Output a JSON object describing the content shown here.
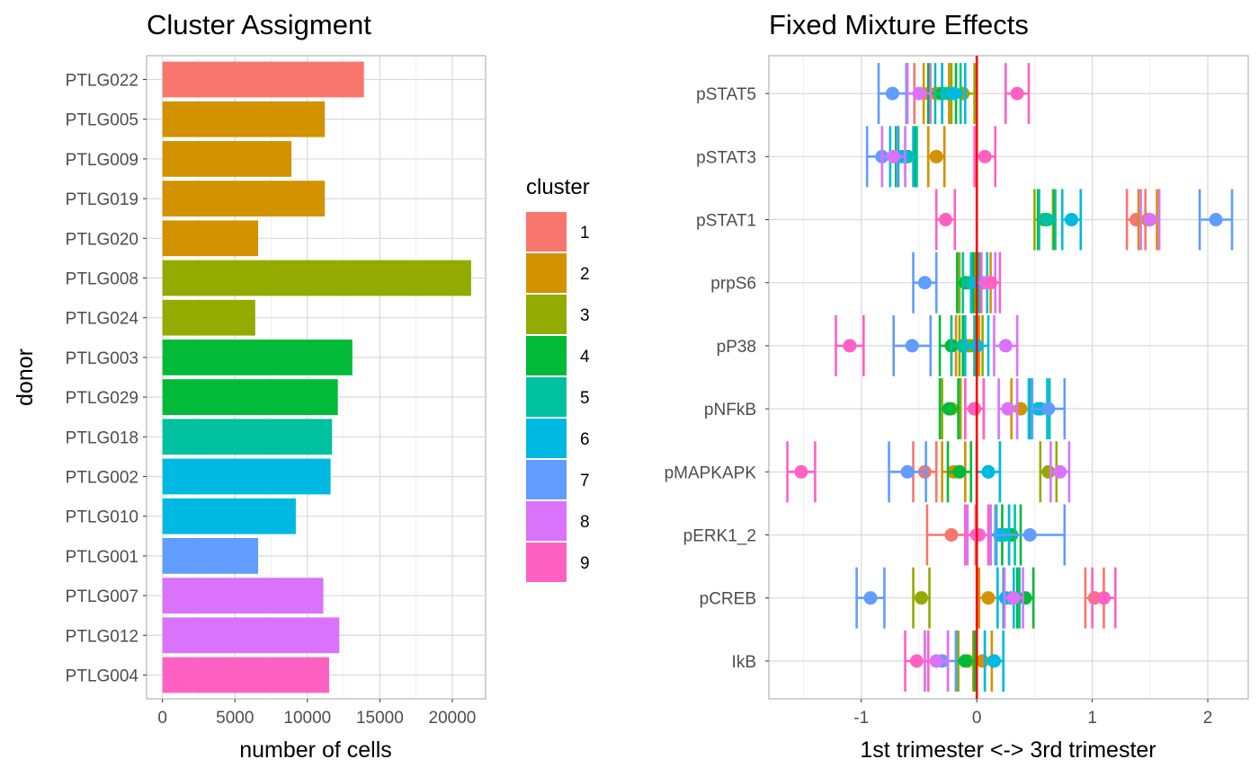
{
  "colors": {
    "1": "#F8766D",
    "2": "#D39200",
    "3": "#93AA00",
    "4": "#00BA38",
    "5": "#00C19F",
    "6": "#00B9E3",
    "7": "#619CFF",
    "8": "#DB72FB",
    "9": "#FF61C3",
    "zero_line": "#FF0000",
    "grid": "#d9d9d9",
    "panel_border": "#b3b3b3"
  },
  "chart_data": [
    {
      "type": "bar",
      "orientation": "horizontal",
      "title": "Cluster Assigment",
      "xlabel": "number of cells",
      "ylabel": "donor",
      "xlim": [
        -1100,
        22300
      ],
      "xticks": [
        0,
        5000,
        10000,
        15000,
        20000
      ],
      "grid": true,
      "legend": {
        "title": "cluster",
        "placement": "right",
        "entries": [
          "1",
          "2",
          "3",
          "4",
          "5",
          "6",
          "7",
          "8",
          "9"
        ]
      },
      "bars": [
        {
          "donor": "PTLG022",
          "cluster": "1",
          "value": 13900
        },
        {
          "donor": "PTLG005",
          "cluster": "2",
          "value": 11200
        },
        {
          "donor": "PTLG009",
          "cluster": "2",
          "value": 8900
        },
        {
          "donor": "PTLG019",
          "cluster": "2",
          "value": 11200
        },
        {
          "donor": "PTLG020",
          "cluster": "2",
          "value": 6600
        },
        {
          "donor": "PTLG008",
          "cluster": "3",
          "value": 21300
        },
        {
          "donor": "PTLG024",
          "cluster": "3",
          "value": 6400
        },
        {
          "donor": "PTLG003",
          "cluster": "4",
          "value": 13100
        },
        {
          "donor": "PTLG029",
          "cluster": "4",
          "value": 12100
        },
        {
          "donor": "PTLG018",
          "cluster": "5",
          "value": 11700
        },
        {
          "donor": "PTLG002",
          "cluster": "6",
          "value": 11600
        },
        {
          "donor": "PTLG010",
          "cluster": "6",
          "value": 9200
        },
        {
          "donor": "PTLG001",
          "cluster": "7",
          "value": 6600
        },
        {
          "donor": "PTLG007",
          "cluster": "8",
          "value": 11100
        },
        {
          "donor": "PTLG012",
          "cluster": "8",
          "value": 12200
        },
        {
          "donor": "PTLG004",
          "cluster": "9",
          "value": 11500
        }
      ]
    },
    {
      "type": "scatter",
      "subtype": "point-range (estimate with confidence interval)",
      "title": "Fixed Mixture Effects",
      "xlabel": "1st trimester <-> 3rd trimester",
      "ylabel": "",
      "xlim": [
        -1.8,
        2.35
      ],
      "xticks": [
        -1,
        0,
        1,
        2
      ],
      "xtick_labels": [
        "-1",
        "0",
        "1",
        "2"
      ],
      "reference_line": {
        "x": 0,
        "color": "#FF0000"
      },
      "grid": true,
      "markers": [
        "pSTAT5",
        "pSTAT3",
        "pSTAT1",
        "prpS6",
        "pP38",
        "pNFkB",
        "pMAPKAPK",
        "pERK1_2",
        "pCREB",
        "IkB"
      ],
      "points": [
        {
          "marker": "pSTAT5",
          "cluster": "1",
          "est": -0.42,
          "lo": -0.54,
          "hi": -0.3
        },
        {
          "marker": "pSTAT5",
          "cluster": "2",
          "est": -0.35,
          "lo": -0.46,
          "hi": -0.24
        },
        {
          "marker": "pSTAT5",
          "cluster": "3",
          "est": -0.12,
          "lo": -0.22,
          "hi": -0.02
        },
        {
          "marker": "pSTAT5",
          "cluster": "4",
          "est": -0.3,
          "lo": -0.42,
          "hi": -0.18
        },
        {
          "marker": "pSTAT5",
          "cluster": "5",
          "est": -0.25,
          "lo": -0.36,
          "hi": -0.14
        },
        {
          "marker": "pSTAT5",
          "cluster": "6",
          "est": -0.2,
          "lo": -0.3,
          "hi": -0.1
        },
        {
          "marker": "pSTAT5",
          "cluster": "7",
          "est": -0.73,
          "lo": -0.85,
          "hi": -0.61
        },
        {
          "marker": "pSTAT5",
          "cluster": "8",
          "est": -0.5,
          "lo": -0.6,
          "hi": -0.4
        },
        {
          "marker": "pSTAT5",
          "cluster": "9",
          "est": 0.35,
          "lo": 0.25,
          "hi": 0.45
        },
        {
          "marker": "pSTAT3",
          "cluster": "1",
          "est": -0.35,
          "lo": -0.42,
          "hi": -0.28
        },
        {
          "marker": "pSTAT3",
          "cluster": "2",
          "est": -0.35,
          "lo": -0.42,
          "hi": -0.28
        },
        {
          "marker": "pSTAT3",
          "cluster": "3",
          "est": -0.6,
          "lo": -0.68,
          "hi": -0.52
        },
        {
          "marker": "pSTAT3",
          "cluster": "4",
          "est": -0.62,
          "lo": -0.7,
          "hi": -0.54
        },
        {
          "marker": "pSTAT3",
          "cluster": "5",
          "est": -0.6,
          "lo": -0.68,
          "hi": -0.52
        },
        {
          "marker": "pSTAT3",
          "cluster": "6",
          "est": -0.65,
          "lo": -0.75,
          "hi": -0.55
        },
        {
          "marker": "pSTAT3",
          "cluster": "7",
          "est": -0.82,
          "lo": -0.95,
          "hi": -0.69
        },
        {
          "marker": "pSTAT3",
          "cluster": "8",
          "est": -0.72,
          "lo": -0.82,
          "hi": -0.62
        },
        {
          "marker": "pSTAT3",
          "cluster": "9",
          "est": 0.07,
          "lo": -0.02,
          "hi": 0.16
        },
        {
          "marker": "pSTAT1",
          "cluster": "1",
          "est": 1.38,
          "lo": 1.3,
          "hi": 1.46
        },
        {
          "marker": "pSTAT1",
          "cluster": "2",
          "est": 1.48,
          "lo": 1.4,
          "hi": 1.56
        },
        {
          "marker": "pSTAT1",
          "cluster": "3",
          "est": 0.58,
          "lo": 0.5,
          "hi": 0.66
        },
        {
          "marker": "pSTAT1",
          "cluster": "4",
          "est": 0.6,
          "lo": 0.53,
          "hi": 0.67
        },
        {
          "marker": "pSTAT1",
          "cluster": "5",
          "est": 0.61,
          "lo": 0.54,
          "hi": 0.68
        },
        {
          "marker": "pSTAT1",
          "cluster": "6",
          "est": 0.82,
          "lo": 0.74,
          "hi": 0.9
        },
        {
          "marker": "pSTAT1",
          "cluster": "7",
          "est": 2.07,
          "lo": 1.93,
          "hi": 2.21
        },
        {
          "marker": "pSTAT1",
          "cluster": "8",
          "est": 1.5,
          "lo": 1.42,
          "hi": 1.58
        },
        {
          "marker": "pSTAT1",
          "cluster": "9",
          "est": -0.27,
          "lo": -0.35,
          "hi": -0.19
        },
        {
          "marker": "prpS6",
          "cluster": "1",
          "est": -0.05,
          "lo": -0.12,
          "hi": 0.02
        },
        {
          "marker": "prpS6",
          "cluster": "2",
          "est": 0.05,
          "lo": -0.02,
          "hi": 0.12
        },
        {
          "marker": "prpS6",
          "cluster": "3",
          "est": -0.08,
          "lo": -0.15,
          "hi": -0.01
        },
        {
          "marker": "prpS6",
          "cluster": "4",
          "est": -0.1,
          "lo": -0.17,
          "hi": -0.03
        },
        {
          "marker": "prpS6",
          "cluster": "5",
          "est": -0.05,
          "lo": -0.12,
          "hi": 0.02
        },
        {
          "marker": "prpS6",
          "cluster": "6",
          "est": 0.02,
          "lo": -0.05,
          "hi": 0.09
        },
        {
          "marker": "prpS6",
          "cluster": "7",
          "est": -0.45,
          "lo": -0.55,
          "hi": -0.35
        },
        {
          "marker": "prpS6",
          "cluster": "8",
          "est": 0.08,
          "lo": 0.0,
          "hi": 0.16
        },
        {
          "marker": "prpS6",
          "cluster": "9",
          "est": 0.12,
          "lo": 0.04,
          "hi": 0.2
        },
        {
          "marker": "pP38",
          "cluster": "1",
          "est": -0.12,
          "lo": -0.22,
          "hi": -0.02
        },
        {
          "marker": "pP38",
          "cluster": "2",
          "est": -0.08,
          "lo": -0.18,
          "hi": 0.02
        },
        {
          "marker": "pP38",
          "cluster": "3",
          "est": -0.05,
          "lo": -0.15,
          "hi": 0.05
        },
        {
          "marker": "pP38",
          "cluster": "4",
          "est": -0.22,
          "lo": -0.32,
          "hi": -0.12
        },
        {
          "marker": "pP38",
          "cluster": "5",
          "est": -0.12,
          "lo": -0.22,
          "hi": -0.02
        },
        {
          "marker": "pP38",
          "cluster": "6",
          "est": 0.0,
          "lo": -0.1,
          "hi": 0.1
        },
        {
          "marker": "pP38",
          "cluster": "7",
          "est": -0.56,
          "lo": -0.72,
          "hi": -0.4
        },
        {
          "marker": "pP38",
          "cluster": "8",
          "est": 0.25,
          "lo": 0.15,
          "hi": 0.35
        },
        {
          "marker": "pP38",
          "cluster": "9",
          "est": -1.1,
          "lo": -1.22,
          "hi": -0.98
        },
        {
          "marker": "pNFkB",
          "cluster": "1",
          "est": -0.02,
          "lo": -0.1,
          "hi": 0.06
        },
        {
          "marker": "pNFkB",
          "cluster": "2",
          "est": 0.38,
          "lo": 0.3,
          "hi": 0.46
        },
        {
          "marker": "pNFkB",
          "cluster": "3",
          "est": -0.22,
          "lo": -0.3,
          "hi": -0.14
        },
        {
          "marker": "pNFkB",
          "cluster": "4",
          "est": -0.24,
          "lo": -0.32,
          "hi": -0.16
        },
        {
          "marker": "pNFkB",
          "cluster": "5",
          "est": 0.55,
          "lo": 0.47,
          "hi": 0.63
        },
        {
          "marker": "pNFkB",
          "cluster": "6",
          "est": 0.53,
          "lo": 0.45,
          "hi": 0.61
        },
        {
          "marker": "pNFkB",
          "cluster": "7",
          "est": 0.62,
          "lo": 0.48,
          "hi": 0.76
        },
        {
          "marker": "pNFkB",
          "cluster": "8",
          "est": 0.27,
          "lo": 0.19,
          "hi": 0.35
        },
        {
          "marker": "pNFkB",
          "cluster": "9",
          "est": -0.02,
          "lo": -0.1,
          "hi": 0.06
        },
        {
          "marker": "pMAPKAPK",
          "cluster": "1",
          "est": -0.45,
          "lo": -0.55,
          "hi": -0.35
        },
        {
          "marker": "pMAPKAPK",
          "cluster": "2",
          "est": -0.2,
          "lo": -0.3,
          "hi": -0.1
        },
        {
          "marker": "pMAPKAPK",
          "cluster": "3",
          "est": 0.62,
          "lo": 0.55,
          "hi": 0.69
        },
        {
          "marker": "pMAPKAPK",
          "cluster": "4",
          "est": -0.15,
          "lo": -0.25,
          "hi": -0.05
        },
        {
          "marker": "pMAPKAPK",
          "cluster": "5",
          "est": 0.1,
          "lo": 0.0,
          "hi": 0.2
        },
        {
          "marker": "pMAPKAPK",
          "cluster": "6",
          "est": 0.1,
          "lo": 0.0,
          "hi": 0.2
        },
        {
          "marker": "pMAPKAPK",
          "cluster": "7",
          "est": -0.6,
          "lo": -0.76,
          "hi": -0.44
        },
        {
          "marker": "pMAPKAPK",
          "cluster": "8",
          "est": 0.72,
          "lo": 0.64,
          "hi": 0.8
        },
        {
          "marker": "pMAPKAPK",
          "cluster": "9",
          "est": -1.52,
          "lo": -1.64,
          "hi": -1.4
        },
        {
          "marker": "pERK1_2",
          "cluster": "1",
          "est": -0.22,
          "lo": -0.43,
          "hi": -0.01
        },
        {
          "marker": "pERK1_2",
          "cluster": "2",
          "est": 0.2,
          "lo": 0.12,
          "hi": 0.28
        },
        {
          "marker": "pERK1_2",
          "cluster": "3",
          "est": 0.2,
          "lo": 0.12,
          "hi": 0.28
        },
        {
          "marker": "pERK1_2",
          "cluster": "4",
          "est": 0.3,
          "lo": 0.22,
          "hi": 0.38
        },
        {
          "marker": "pERK1_2",
          "cluster": "5",
          "est": 0.25,
          "lo": 0.17,
          "hi": 0.33
        },
        {
          "marker": "pERK1_2",
          "cluster": "6",
          "est": 0.2,
          "lo": 0.12,
          "hi": 0.28
        },
        {
          "marker": "pERK1_2",
          "cluster": "7",
          "est": 0.46,
          "lo": 0.16,
          "hi": 0.76
        },
        {
          "marker": "pERK1_2",
          "cluster": "8",
          "est": 0.02,
          "lo": -0.08,
          "hi": 0.12
        },
        {
          "marker": "pERK1_2",
          "cluster": "9",
          "est": 0.0,
          "lo": -0.1,
          "hi": 0.1
        },
        {
          "marker": "pCREB",
          "cluster": "1",
          "est": 1.02,
          "lo": 0.94,
          "hi": 1.1
        },
        {
          "marker": "pCREB",
          "cluster": "2",
          "est": 0.1,
          "lo": 0.02,
          "hi": 0.18
        },
        {
          "marker": "pCREB",
          "cluster": "3",
          "est": -0.48,
          "lo": -0.55,
          "hi": -0.41
        },
        {
          "marker": "pCREB",
          "cluster": "4",
          "est": 0.42,
          "lo": 0.35,
          "hi": 0.49
        },
        {
          "marker": "pCREB",
          "cluster": "5",
          "est": 0.3,
          "lo": 0.23,
          "hi": 0.37
        },
        {
          "marker": "pCREB",
          "cluster": "6",
          "est": 0.25,
          "lo": 0.18,
          "hi": 0.32
        },
        {
          "marker": "pCREB",
          "cluster": "7",
          "est": -0.92,
          "lo": -1.04,
          "hi": -0.8
        },
        {
          "marker": "pCREB",
          "cluster": "8",
          "est": 0.32,
          "lo": 0.24,
          "hi": 0.4
        },
        {
          "marker": "pCREB",
          "cluster": "9",
          "est": 1.1,
          "lo": 1.0,
          "hi": 1.2
        },
        {
          "marker": "IkB",
          "cluster": "1",
          "est": -0.35,
          "lo": -0.45,
          "hi": -0.25
        },
        {
          "marker": "IkB",
          "cluster": "2",
          "est": 0.05,
          "lo": -0.03,
          "hi": 0.13
        },
        {
          "marker": "IkB",
          "cluster": "3",
          "est": -0.08,
          "lo": -0.16,
          "hi": 0.0
        },
        {
          "marker": "IkB",
          "cluster": "4",
          "est": -0.1,
          "lo": -0.18,
          "hi": -0.02
        },
        {
          "marker": "IkB",
          "cluster": "5",
          "est": 0.15,
          "lo": 0.07,
          "hi": 0.23
        },
        {
          "marker": "IkB",
          "cluster": "6",
          "est": 0.15,
          "lo": 0.07,
          "hi": 0.23
        },
        {
          "marker": "IkB",
          "cluster": "7",
          "est": -0.3,
          "lo": -0.42,
          "hi": -0.18
        },
        {
          "marker": "IkB",
          "cluster": "8",
          "est": -0.35,
          "lo": -0.45,
          "hi": -0.25
        },
        {
          "marker": "IkB",
          "cluster": "9",
          "est": -0.52,
          "lo": -0.62,
          "hi": -0.42
        }
      ]
    }
  ]
}
